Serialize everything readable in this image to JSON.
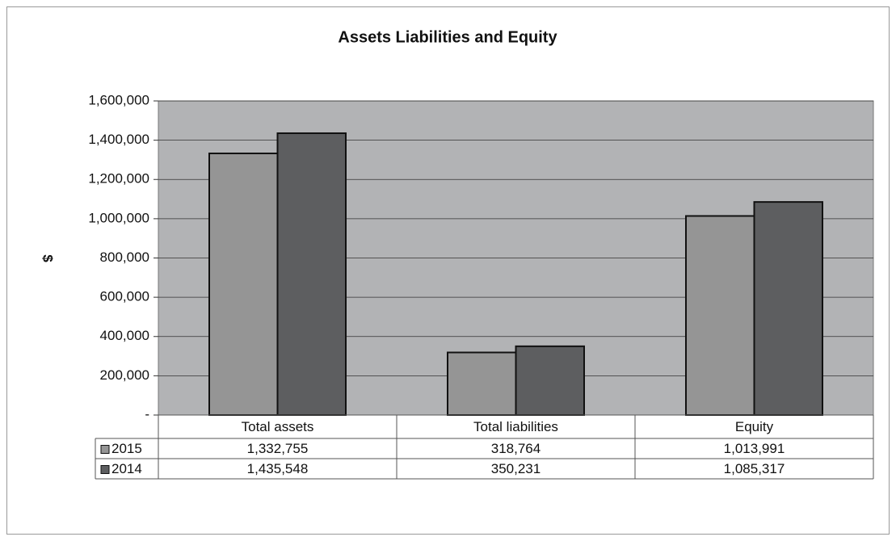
{
  "chart_data": {
    "type": "bar",
    "title": "Assets Liabilities and Equity",
    "y_label": "$",
    "categories": [
      "Total assets",
      "Total liabilities",
      "Equity"
    ],
    "series": [
      {
        "name": "2015",
        "color": "#959595",
        "values": [
          1332755,
          318764,
          1013991
        ],
        "value_labels": [
          "1,332,755",
          "318,764",
          "1,013,991"
        ]
      },
      {
        "name": "2014",
        "color": "#5d5e60",
        "values": [
          1435548,
          350231,
          1085317
        ],
        "value_labels": [
          "1,435,548",
          "350,231",
          "1,085,317"
        ]
      }
    ],
    "ylim": [
      0,
      1600000
    ],
    "yticks": [
      {
        "value": 0,
        "label": "-"
      },
      {
        "value": 200000,
        "label": "200,000"
      },
      {
        "value": 400000,
        "label": "400,000"
      },
      {
        "value": 600000,
        "label": "600,000"
      },
      {
        "value": 800000,
        "label": "800,000"
      },
      {
        "value": 1000000,
        "label": "1,000,000"
      },
      {
        "value": 1200000,
        "label": "1,200,000"
      },
      {
        "value": 1400000,
        "label": "1,400,000"
      },
      {
        "value": 1600000,
        "label": "1,600,000"
      }
    ],
    "grid": true,
    "plot_background": "#b2b3b5"
  }
}
